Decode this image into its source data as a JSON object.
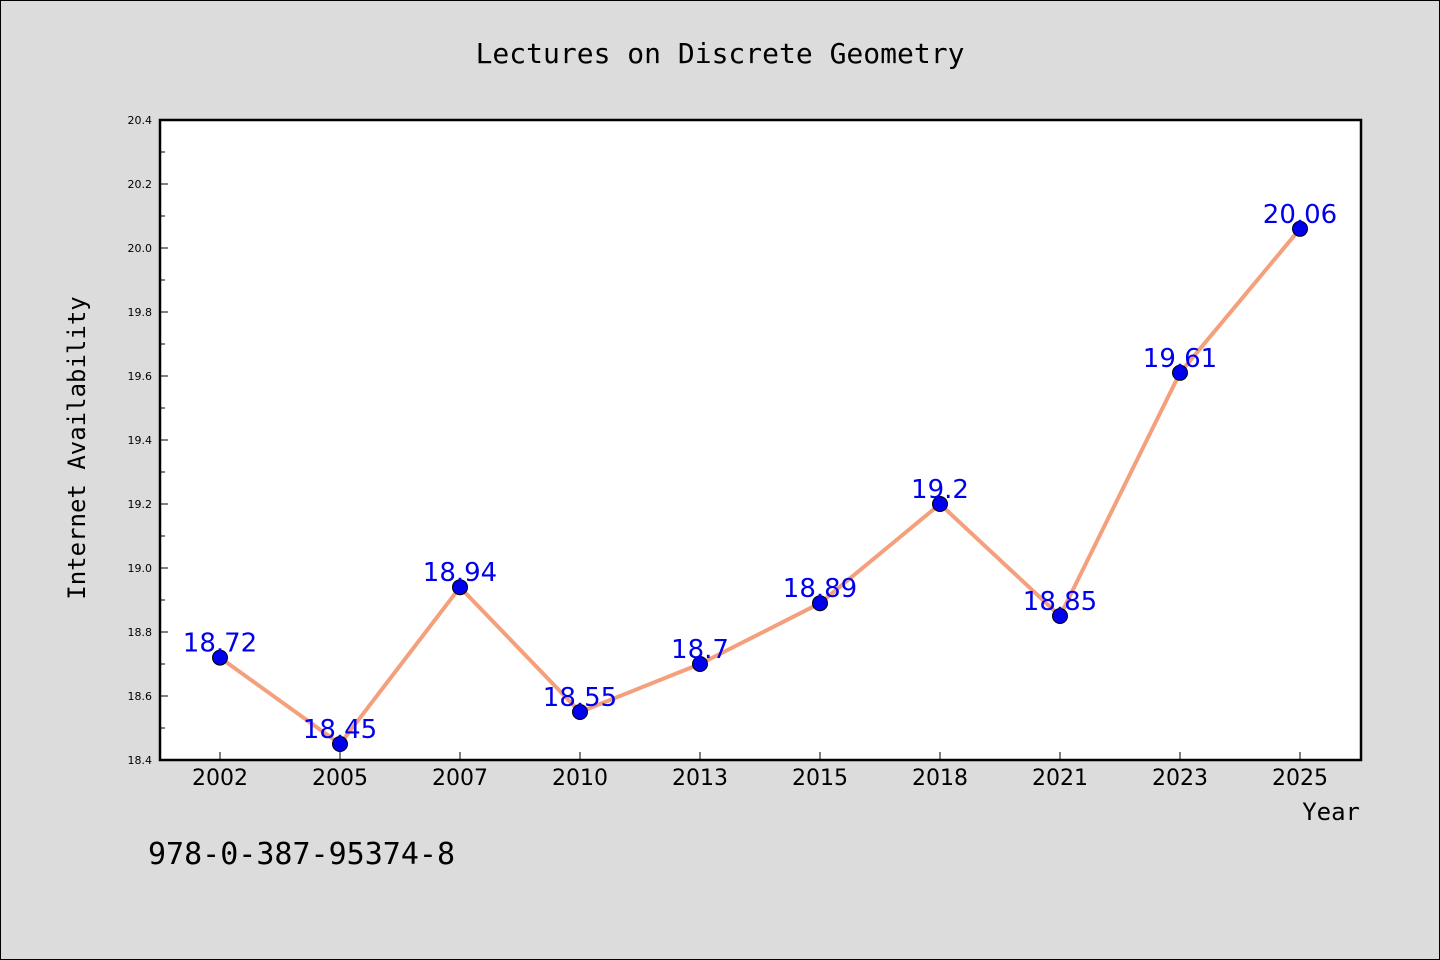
{
  "chart_data": {
    "type": "line",
    "title": "Lectures on Discrete Geometry",
    "xlabel": "Year",
    "ylabel": "Internet Availability",
    "categories": [
      "2002",
      "2005",
      "2007",
      "2010",
      "2013",
      "2015",
      "2018",
      "2021",
      "2023",
      "2025"
    ],
    "series": [
      {
        "values": [
          18.72,
          18.45,
          18.94,
          18.55,
          18.7,
          18.89,
          19.2,
          18.85,
          19.61,
          20.06
        ],
        "data_labels": [
          "18.72",
          "18.45",
          "18.94",
          "18.55",
          "18.7",
          "18.89",
          "19.2",
          "18.85",
          "19.61",
          "20.06"
        ],
        "line_color": "#f4a07c",
        "marker_color": "#0000ee"
      }
    ],
    "ylim": [
      18.4,
      20.4
    ],
    "yticks": [
      "18.4",
      "18.6",
      "18.8",
      "19.0",
      "19.2",
      "19.4",
      "19.6",
      "19.8",
      "20.0",
      "20.2",
      "20.4"
    ],
    "grid": false,
    "legend": "none",
    "background_color": "#dcdcdc",
    "plot_background": "#ffffff",
    "data_label_color": "#0000ee"
  },
  "footer": {
    "isbn": "978-0-387-95374-8"
  }
}
